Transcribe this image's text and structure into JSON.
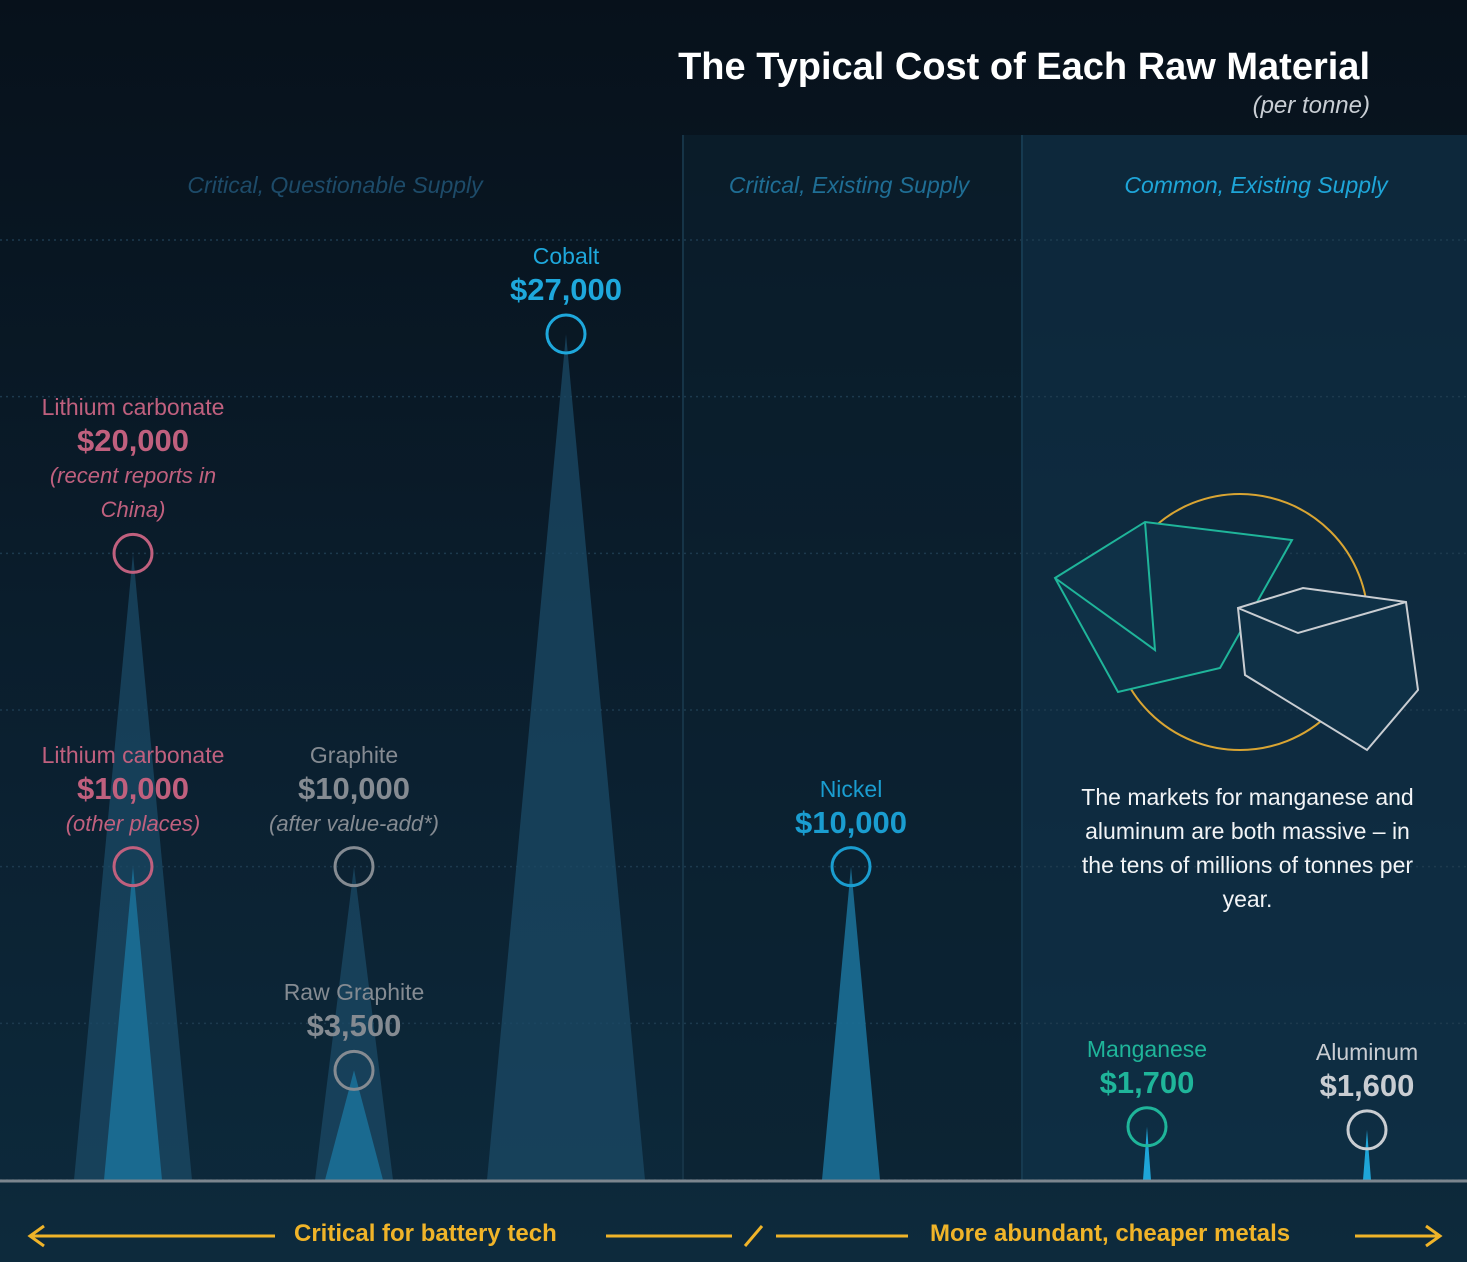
{
  "chart_data": {
    "type": "peak",
    "title": "The Typical Cost of Each Raw Material",
    "subtitle": "(per tonne)",
    "ylim": [
      0,
      30000
    ],
    "yticks": [
      0,
      5000,
      10000,
      15000,
      20000,
      25000,
      30000
    ],
    "grid": true,
    "groups": [
      "Critical, Questionable Supply",
      "Critical, Existing Supply",
      "Common, Existing Supply"
    ],
    "items": [
      {
        "name": "Lithium carbonate",
        "value": 20000,
        "value_label": "$20,000",
        "note": "(recent reports in China)",
        "color": "#c0607e"
      },
      {
        "name": "Lithium carbonate",
        "value": 10000,
        "value_label": "$10,000",
        "note": "(other places)",
        "color": "#c0607e"
      },
      {
        "name": "Graphite",
        "value": 10000,
        "value_label": "$10,000",
        "note": "(after value-add*)",
        "color": "#858b92"
      },
      {
        "name": "Raw Graphite",
        "value": 3500,
        "value_label": "$3,500",
        "color": "#858b92"
      },
      {
        "name": "Cobalt",
        "value": 27000,
        "value_label": "$27,000",
        "color": "#1ea8dc"
      },
      {
        "name": "Nickel",
        "value": 10000,
        "value_label": "$10,000",
        "color": "#1a9dd0"
      },
      {
        "name": "Manganese",
        "value": 1700,
        "value_label": "$1,700",
        "color": "#1fb59a"
      },
      {
        "name": "Aluminum",
        "value": 1600,
        "value_label": "$1,600",
        "color": "#c9cdd2"
      }
    ],
    "annotation": "The markets for manganese and aluminum are both massive – in the tens of millions of tonnes per year.",
    "x_axis_labels": [
      "Critical for battery tech",
      "More abundant, cheaper metals"
    ]
  }
}
